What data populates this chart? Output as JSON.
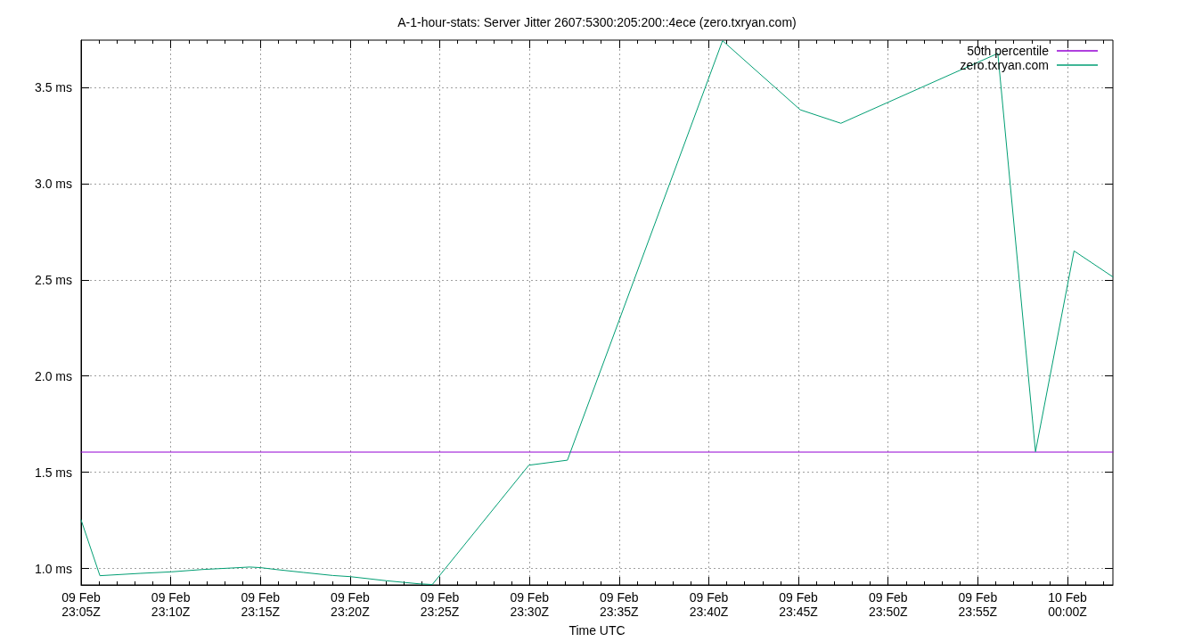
{
  "chart_data": {
    "type": "line",
    "title": "A-1-hour-stats: Server Jitter 2607:5300:205:200::4ece (zero.txryan.com)",
    "xlabel": "Time UTC",
    "xlim": [
      "--02-09T23:05:00",
      "--02-10T00:02:32"
    ],
    "xticks": [
      {
        "value": "--02-09T23:05",
        "label": "09 Feb\n23:05Z"
      },
      {
        "value": "--02-09T23:10",
        "label": "09 Feb\n23:10Z"
      },
      {
        "value": "--02-09T23:15",
        "label": "09 Feb\n23:15Z"
      },
      {
        "value": "--02-09T23:20",
        "label": "09 Feb\n23:20Z"
      },
      {
        "value": "--02-09T23:25",
        "label": "09 Feb\n23:25Z"
      },
      {
        "value": "--02-09T23:30",
        "label": "09 Feb\n23:30Z"
      },
      {
        "value": "--02-09T23:35",
        "label": "09 Feb\n23:35Z"
      },
      {
        "value": "--02-09T23:40",
        "label": "09 Feb\n23:40Z"
      },
      {
        "value": "--02-09T23:45",
        "label": "09 Feb\n23:45Z"
      },
      {
        "value": "--02-09T23:50",
        "label": "09 Feb\n23:50Z"
      },
      {
        "value": "--02-09T23:55",
        "label": "09 Feb\n23:55Z"
      },
      {
        "value": "--02-10T00:00",
        "label": "10 Feb\n00:00Z"
      }
    ],
    "ylim": [
      0.915,
      3.745
    ],
    "yticks": [
      {
        "value": 1,
        "label": "1.0 ms"
      },
      {
        "value": 1.5,
        "label": "1.5 ms"
      },
      {
        "value": 2,
        "label": "2.0 ms"
      },
      {
        "value": 2.5,
        "label": "2.5 ms"
      },
      {
        "value": 3,
        "label": "3.0 ms"
      },
      {
        "value": 3.5,
        "label": "3.5 ms"
      }
    ],
    "grid": true,
    "legend": "top right",
    "marker": "none",
    "line_style": "solid",
    "series": [
      {
        "name": "50th percentile",
        "color": "#9400d3",
        "x": [
          "--02-09T23:05:00",
          "--02-10T00:02:32"
        ],
        "values": [
          1.605,
          1.605
        ]
      },
      {
        "name": "zero.txryan.com",
        "color": "#009e73",
        "x": [
          "--02-09T23:05:00",
          "--02-09T23:06:03",
          "--02-09T23:08:17",
          "--02-09T23:10:02",
          "--02-09T23:11:45",
          "--02-09T23:13:24",
          "--02-09T23:14:24",
          "--02-09T23:15:00",
          "--02-09T23:15:53",
          "--02-09T23:17:23",
          "--02-09T23:19:02",
          "--02-09T23:20:01",
          "--02-09T23:22:00",
          "--02-09T23:23:50",
          "--02-09T23:24:35",
          "--02-09T23:29:58",
          "--02-09T23:32:07",
          "--02-09T23:40:46",
          "--02-09T23:45:06",
          "--02-09T23:47:22",
          "--02-09T23:56:07",
          "--02-09T23:58:13",
          "--02-10T00:00:22",
          "--02-10T00:02:32"
        ],
        "values": [
          1.253,
          0.963,
          0.975,
          0.983,
          0.995,
          1.003,
          1.008,
          1.005,
          0.995,
          0.98,
          0.964,
          0.958,
          0.937,
          0.921,
          0.917,
          1.537,
          1.563,
          3.742,
          3.383,
          3.313,
          3.676,
          1.607,
          2.65,
          2.515
        ]
      }
    ]
  }
}
